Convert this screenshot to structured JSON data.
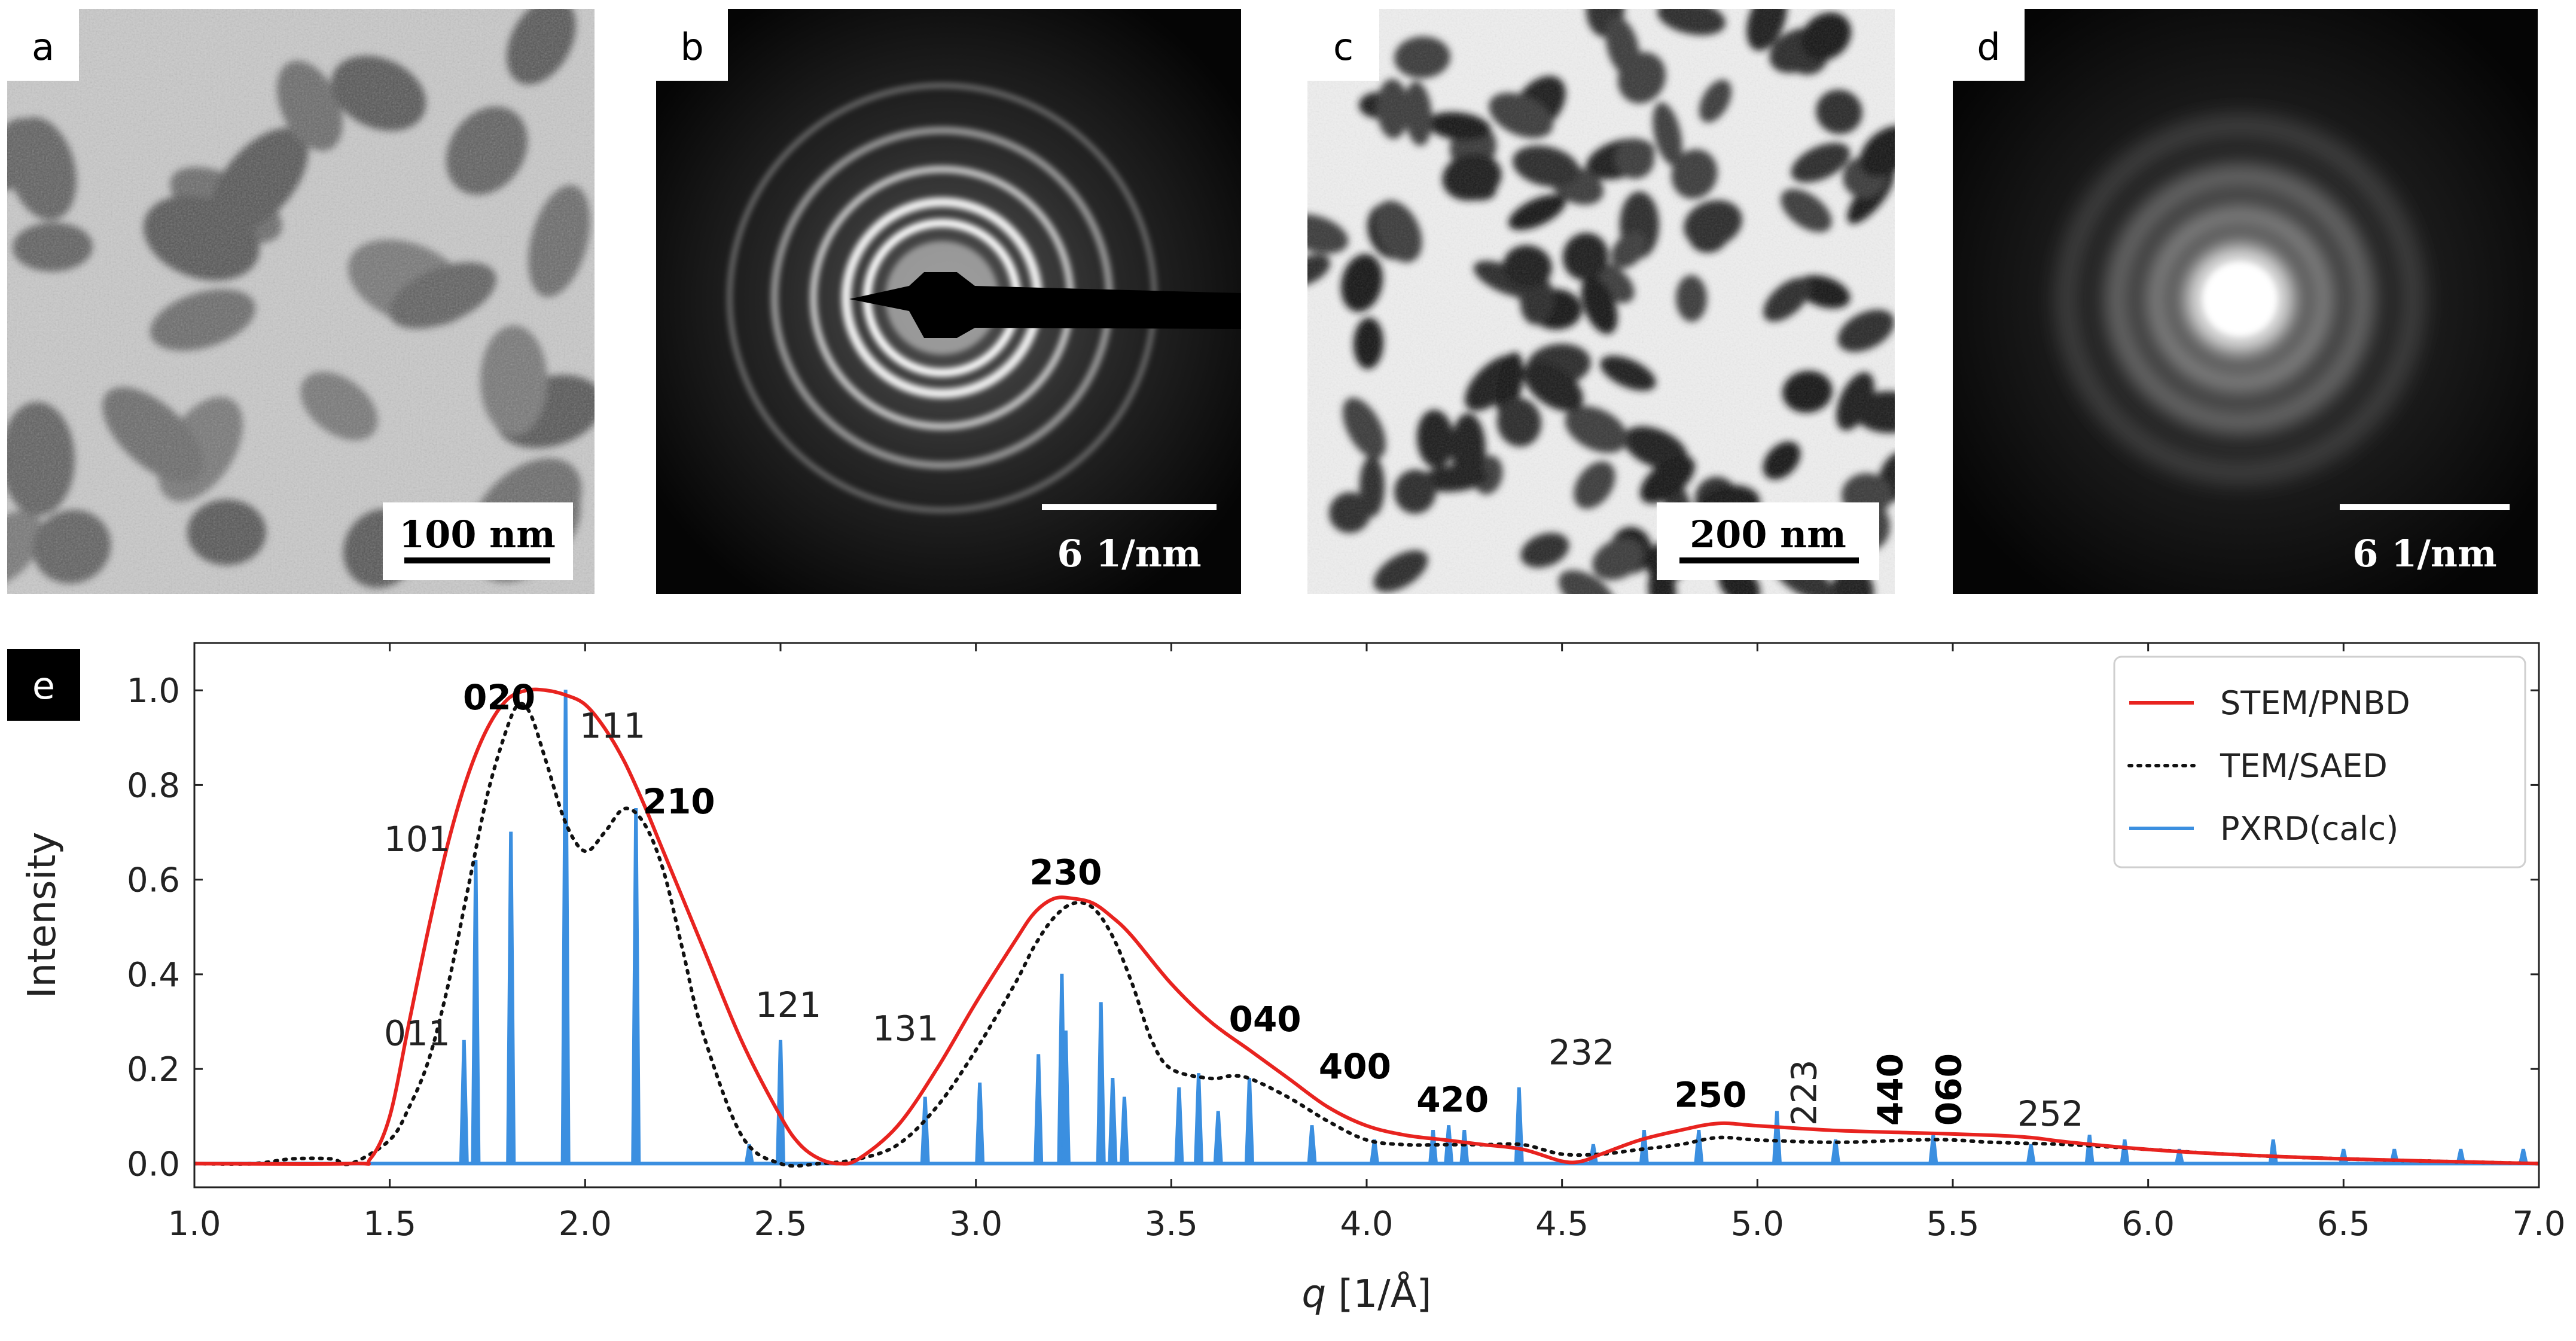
{
  "panels": {
    "a": {
      "letter": "a",
      "scalebar": "100 nm"
    },
    "b": {
      "letter": "b",
      "scalebar": "6 1/nm"
    },
    "c": {
      "letter": "c",
      "scalebar": "200 nm"
    },
    "d": {
      "letter": "d",
      "scalebar": "6 1/nm"
    },
    "e": {
      "letter": "e"
    }
  },
  "colors": {
    "stem": "#e8231f",
    "saed": "#111111",
    "pxrd": "#3b8fe0"
  },
  "chart_data": {
    "type": "line",
    "xlabel_italic": "q",
    "xlabel_unit": " [1/Å]",
    "ylabel": "Intensity",
    "xlim": [
      1.0,
      7.0
    ],
    "ylim": [
      -0.05,
      1.1
    ],
    "xticks": [
      "1.0",
      "1.5",
      "2.0",
      "2.5",
      "3.0",
      "3.5",
      "4.0",
      "4.5",
      "5.0",
      "5.5",
      "6.0",
      "6.5",
      "7.0"
    ],
    "yticks": [
      "0.0",
      "0.2",
      "0.4",
      "0.6",
      "0.8",
      "1.0"
    ],
    "legend": [
      "STEM/PNBD",
      "TEM/SAED",
      "PXRD(calc)"
    ],
    "legend_loc": "upper right",
    "series": [
      {
        "name": "STEM/PNBD",
        "x": [
          1.0,
          1.4,
          1.45,
          1.5,
          1.55,
          1.6,
          1.65,
          1.7,
          1.75,
          1.8,
          1.85,
          1.9,
          1.95,
          2.0,
          2.05,
          2.1,
          2.15,
          2.2,
          2.3,
          2.4,
          2.5,
          2.55,
          2.6,
          2.65,
          2.7,
          2.8,
          2.9,
          3.0,
          3.1,
          3.15,
          3.2,
          3.25,
          3.3,
          3.35,
          3.4,
          3.5,
          3.6,
          3.7,
          3.8,
          3.9,
          4.0,
          4.1,
          4.2,
          4.3,
          4.4,
          4.5,
          4.55,
          4.6,
          4.7,
          4.8,
          4.9,
          5.0,
          5.2,
          5.4,
          5.6,
          5.7,
          5.8,
          6.0,
          6.2,
          6.5,
          7.0
        ],
        "y": [
          0.0,
          0.0,
          0.01,
          0.1,
          0.3,
          0.5,
          0.68,
          0.82,
          0.92,
          0.98,
          1.0,
          1.0,
          0.99,
          0.97,
          0.92,
          0.85,
          0.76,
          0.66,
          0.46,
          0.26,
          0.1,
          0.04,
          0.01,
          0.0,
          0.01,
          0.08,
          0.2,
          0.34,
          0.47,
          0.53,
          0.56,
          0.56,
          0.55,
          0.52,
          0.48,
          0.38,
          0.3,
          0.24,
          0.18,
          0.12,
          0.08,
          0.06,
          0.05,
          0.04,
          0.03,
          0.005,
          0.005,
          0.02,
          0.05,
          0.07,
          0.085,
          0.08,
          0.07,
          0.065,
          0.06,
          0.055,
          0.045,
          0.03,
          0.02,
          0.01,
          0.0
        ]
      },
      {
        "name": "TEM/SAED",
        "x": [
          1.0,
          1.15,
          1.25,
          1.35,
          1.4,
          1.5,
          1.55,
          1.6,
          1.65,
          1.7,
          1.75,
          1.8,
          1.83,
          1.86,
          1.9,
          1.95,
          2.0,
          2.05,
          2.1,
          2.15,
          2.2,
          2.25,
          2.3,
          2.4,
          2.5,
          2.6,
          2.7,
          2.8,
          2.9,
          3.0,
          3.1,
          3.15,
          3.2,
          3.25,
          3.3,
          3.35,
          3.4,
          3.45,
          3.5,
          3.6,
          3.65,
          3.7,
          3.8,
          3.9,
          4.0,
          4.1,
          4.2,
          4.3,
          4.4,
          4.5,
          4.6,
          4.7,
          4.8,
          4.9,
          5.0,
          5.2,
          5.4,
          5.5,
          5.6,
          5.8,
          6.0,
          6.2,
          6.5,
          7.0
        ],
        "y": [
          0.0,
          0.0,
          0.01,
          0.01,
          0.0,
          0.05,
          0.12,
          0.22,
          0.38,
          0.58,
          0.78,
          0.92,
          0.97,
          0.95,
          0.85,
          0.72,
          0.66,
          0.7,
          0.75,
          0.72,
          0.62,
          0.45,
          0.28,
          0.06,
          0.0,
          0.0,
          0.01,
          0.04,
          0.12,
          0.24,
          0.38,
          0.46,
          0.52,
          0.55,
          0.54,
          0.48,
          0.38,
          0.26,
          0.2,
          0.18,
          0.185,
          0.18,
          0.14,
          0.09,
          0.05,
          0.04,
          0.04,
          0.04,
          0.04,
          0.02,
          0.02,
          0.03,
          0.04,
          0.055,
          0.05,
          0.045,
          0.05,
          0.05,
          0.045,
          0.04,
          0.03,
          0.02,
          0.01,
          0.0
        ]
      },
      {
        "name": "PXRD(calc)",
        "type": "stick",
        "x": [
          1.69,
          1.72,
          1.81,
          1.95,
          2.13,
          2.42,
          2.5,
          2.87,
          3.01,
          3.16,
          3.22,
          3.23,
          3.32,
          3.35,
          3.38,
          3.52,
          3.57,
          3.62,
          3.7,
          3.86,
          4.02,
          4.17,
          4.21,
          4.25,
          4.39,
          4.58,
          4.71,
          4.85,
          5.05,
          5.2,
          5.45,
          5.7,
          5.85,
          5.94,
          6.08,
          6.32,
          6.5,
          6.63,
          6.8,
          6.96
        ],
        "y": [
          0.26,
          0.64,
          0.7,
          1.0,
          0.75,
          0.04,
          0.26,
          0.14,
          0.17,
          0.23,
          0.4,
          0.28,
          0.34,
          0.18,
          0.14,
          0.16,
          0.19,
          0.11,
          0.18,
          0.08,
          0.05,
          0.07,
          0.08,
          0.07,
          0.16,
          0.04,
          0.07,
          0.07,
          0.11,
          0.05,
          0.06,
          0.04,
          0.06,
          0.05,
          0.03,
          0.05,
          0.03,
          0.03,
          0.03,
          0.03
        ]
      }
    ],
    "annotations": [
      {
        "label": "020",
        "x": 1.78,
        "y": 0.96,
        "bold": true
      },
      {
        "label": "111",
        "x": 2.07,
        "y": 0.9,
        "bold": false
      },
      {
        "label": "101",
        "x": 1.57,
        "y": 0.66,
        "bold": false
      },
      {
        "label": "210",
        "x": 2.24,
        "y": 0.74,
        "bold": true
      },
      {
        "label": "011",
        "x": 1.57,
        "y": 0.25,
        "bold": false
      },
      {
        "label": "121",
        "x": 2.52,
        "y": 0.31,
        "bold": false
      },
      {
        "label": "131",
        "x": 2.82,
        "y": 0.26,
        "bold": false
      },
      {
        "label": "230",
        "x": 3.23,
        "y": 0.59,
        "bold": true
      },
      {
        "label": "040",
        "x": 3.74,
        "y": 0.28,
        "bold": true
      },
      {
        "label": "400",
        "x": 3.97,
        "y": 0.18,
        "bold": true
      },
      {
        "label": "232",
        "x": 4.55,
        "y": 0.21,
        "bold": false
      },
      {
        "label": "420",
        "x": 4.22,
        "y": 0.11,
        "bold": true
      },
      {
        "label": "250",
        "x": 4.88,
        "y": 0.12,
        "bold": true
      },
      {
        "label": "223",
        "x": 5.12,
        "y": 0.08,
        "bold": false,
        "rotate": true
      },
      {
        "label": "440",
        "x": 5.34,
        "y": 0.08,
        "bold": true,
        "rotate": true
      },
      {
        "label": "060",
        "x": 5.49,
        "y": 0.08,
        "bold": true,
        "rotate": true
      },
      {
        "label": "252",
        "x": 5.75,
        "y": 0.08,
        "bold": false
      }
    ]
  }
}
